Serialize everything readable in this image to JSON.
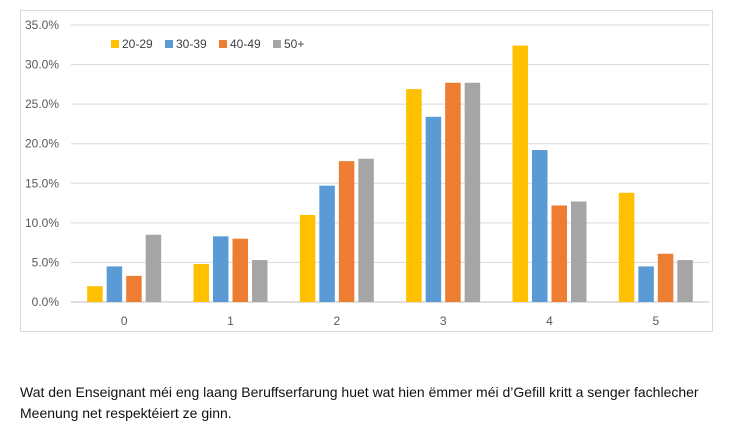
{
  "chart_data": {
    "type": "bar",
    "categories": [
      "0",
      "1",
      "2",
      "3",
      "4",
      "5"
    ],
    "series": [
      {
        "name": "20-29",
        "color": "#FFC000",
        "values": [
          2.0,
          4.8,
          11.0,
          26.9,
          32.4,
          13.8
        ]
      },
      {
        "name": "30-39",
        "color": "#5B9BD5",
        "values": [
          4.5,
          8.3,
          14.7,
          23.4,
          19.2,
          4.5
        ]
      },
      {
        "name": "40-49",
        "color": "#ED7D31",
        "values": [
          3.3,
          8.0,
          17.8,
          27.7,
          12.2,
          6.1
        ]
      },
      {
        "name": "50+",
        "color": "#A5A5A5",
        "values": [
          8.5,
          5.3,
          18.1,
          27.7,
          12.7,
          5.3
        ]
      }
    ],
    "y_ticks": [
      "0.0%",
      "5.0%",
      "10.0%",
      "15.0%",
      "20.0%",
      "25.0%",
      "30.0%",
      "35.0%"
    ],
    "ylim": [
      0,
      35
    ],
    "grid": true,
    "legend_position": "top-left"
  },
  "caption": "Wat den Enseignant méi eng laang Beruffserfarung huet wat hien ëmmer méi d’Gefill kritt a senger fachlecher Meenung net respektéiert ze ginn."
}
